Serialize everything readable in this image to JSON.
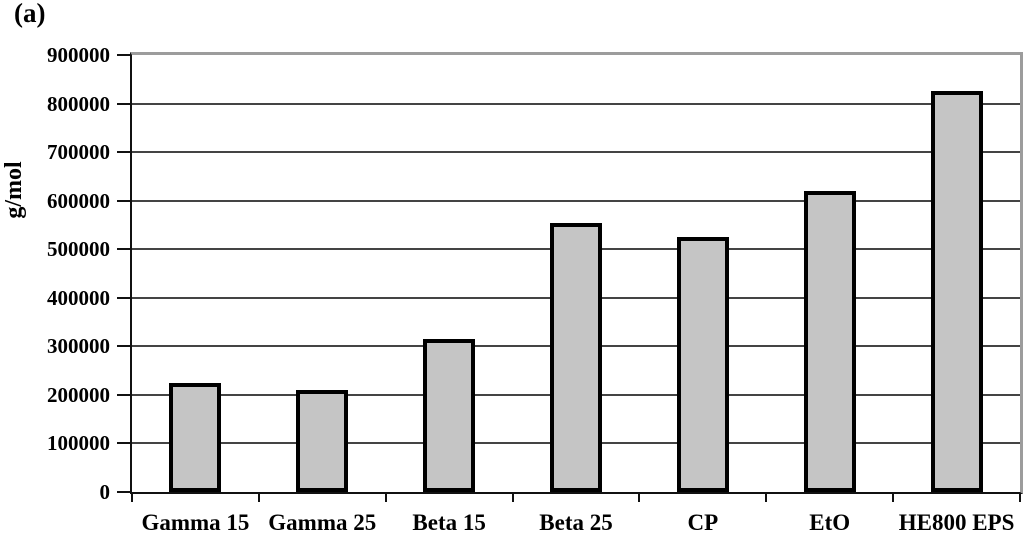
{
  "panel_label": "(a)",
  "chart_data": {
    "type": "bar",
    "categories": [
      "Gamma 15",
      "Gamma 25",
      "Beta 15",
      "Beta 25",
      "CP",
      "EtO",
      "HE800 EPS"
    ],
    "values": [
      225000,
      210000,
      315000,
      555000,
      525000,
      620000,
      825000
    ],
    "title": "",
    "xlabel": "",
    "ylabel": "g/mol",
    "ylim": [
      0,
      900000
    ],
    "ytick_step": 100000,
    "grid": true,
    "legend_position": "none",
    "colors": {
      "bar_fill": "#c5c5c5",
      "bar_border": "#000000",
      "gridline": "#444444",
      "frame": "#9c9c9c",
      "axis": "#111111",
      "text": "#000000",
      "background": "#ffffff"
    }
  }
}
